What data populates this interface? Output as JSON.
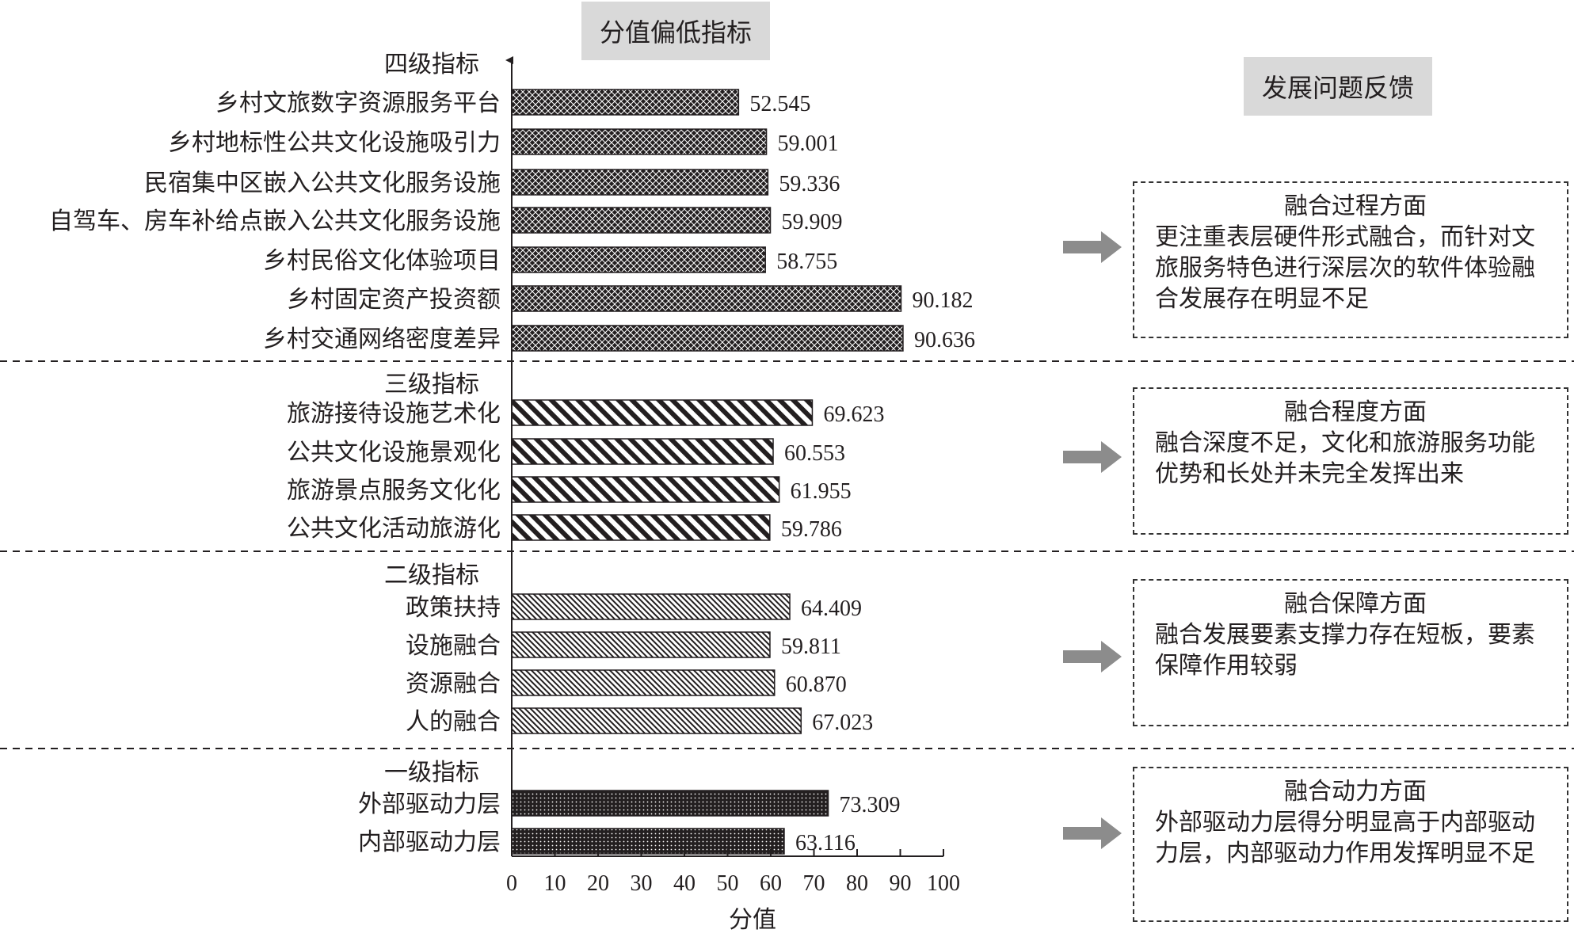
{
  "chart_data": {
    "type": "bar",
    "orientation": "horizontal",
    "title": "分值偏低指标",
    "xlabel": "分值",
    "xlim": [
      0,
      100
    ],
    "xticks": [
      0,
      10,
      20,
      30,
      40,
      50,
      60,
      70,
      80,
      90,
      100
    ],
    "groups": [
      {
        "heading": "四级指标",
        "pattern": "crosshatch-dark",
        "bars": [
          {
            "label": "乡村文旅数字资源服务平台",
            "value": 52.545,
            "value_label": "52.545"
          },
          {
            "label": "乡村地标性公共文化设施吸引力",
            "value": 59.001,
            "value_label": "59.001"
          },
          {
            "label": "民宿集中区嵌入公共文化服务设施",
            "value": 59.336,
            "value_label": "59.336"
          },
          {
            "label": "自驾车、房车补给点嵌入公共文化服务设施",
            "value": 59.909,
            "value_label": "59.909"
          },
          {
            "label": "乡村民俗文化体验项目",
            "value": 58.755,
            "value_label": "58.755"
          },
          {
            "label": "乡村固定资产投资额",
            "value": 90.182,
            "value_label": "90.182"
          },
          {
            "label": "乡村交通网络密度差异",
            "value": 90.636,
            "value_label": "90.636"
          }
        ]
      },
      {
        "heading": "三级指标",
        "pattern": "wide-diagonal",
        "bars": [
          {
            "label": "旅游接待设施艺术化",
            "value": 69.623,
            "value_label": "69.623"
          },
          {
            "label": "公共文化设施景观化",
            "value": 60.553,
            "value_label": "60.553"
          },
          {
            "label": "旅游景点服务文化化",
            "value": 61.955,
            "value_label": "61.955"
          },
          {
            "label": "公共文化活动旅游化",
            "value": 59.786,
            "value_label": "59.786"
          }
        ]
      },
      {
        "heading": "二级指标",
        "pattern": "fine-diagonal",
        "bars": [
          {
            "label": "政策扶持",
            "value": 64.409,
            "value_label": "64.409"
          },
          {
            "label": "设施融合",
            "value": 59.811,
            "value_label": "59.811"
          },
          {
            "label": "资源融合",
            "value": 60.87,
            "value_label": "60.870"
          },
          {
            "label": "人的融合",
            "value": 67.023,
            "value_label": "67.023"
          }
        ]
      },
      {
        "heading": "一级指标",
        "pattern": "dotted-dark",
        "bars": [
          {
            "label": "外部驱动力层",
            "value": 73.309,
            "value_label": "73.309"
          },
          {
            "label": "内部驱动力层",
            "value": 63.116,
            "value_label": "63.116"
          }
        ]
      }
    ]
  },
  "feedback": {
    "title": "发展问题反馈",
    "items": [
      {
        "title": "融合过程方面",
        "text": "更注重表层硬件形式融合，而针对文旅服务特色进行深层次的软件体验融合发展存在明显不足"
      },
      {
        "title": "融合程度方面",
        "text": "融合深度不足，文化和旅游服务功能优势和长处并未完全发挥出来"
      },
      {
        "title": "融合保障方面",
        "text": "融合发展要素支撑力存在短板，要素保障作用较弱"
      },
      {
        "title": "融合动力方面",
        "text": "外部驱动力层得分明显高于内部驱动力层，内部驱动力作用发挥明显不足"
      }
    ]
  },
  "colors": {
    "bar_dark": "#231f20",
    "header_bg": "#d9d9d9",
    "arrow": "#8c8c8c"
  }
}
